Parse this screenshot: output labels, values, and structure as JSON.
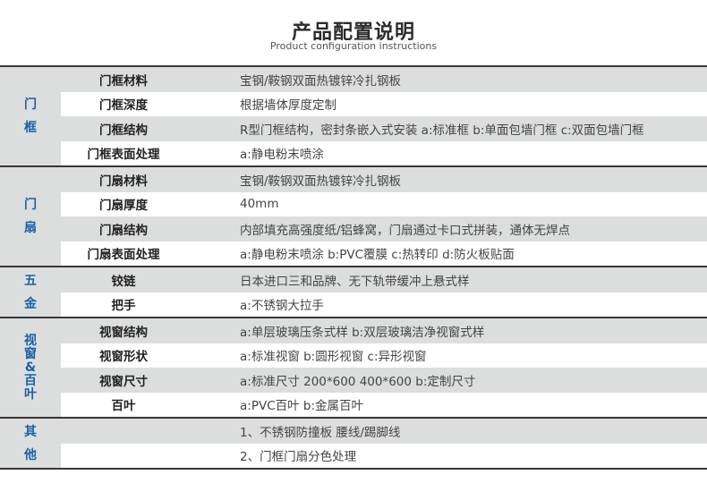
{
  "header": {
    "title": "产品配置说明",
    "subtitle": "Product configuration instructions"
  },
  "accent_color": "#1a5fa8",
  "groups": [
    {
      "name": [
        "门",
        "框"
      ],
      "rows": [
        {
          "label": "门框材料",
          "value": "宝钢/鞍钢双面热镀锌冷扎钢板"
        },
        {
          "label": "门框深度",
          "value": "根据墙体厚度定制"
        },
        {
          "label": "门框结构",
          "value": "R型门框结构，密封条嵌入式安装   a:标准框    b:单面包墙门框   c:双面包墙门框"
        },
        {
          "label": "门框表面处理",
          "value": "a:静电粉末喷涂"
        }
      ]
    },
    {
      "name": [
        "门",
        "扇"
      ],
      "rows": [
        {
          "label": "门扇材料",
          "value": "宝钢/鞍钢双面热镀锌冷扎钢板"
        },
        {
          "label": "门扇厚度",
          "value": "40mm"
        },
        {
          "label": "门扇结构",
          "value": "内部填充高强度纸/铝蜂窝，门扇通过卡口式拼装，通体无焊点"
        },
        {
          "label": "门扇表面处理",
          "value": "a:静电粉末喷涂   b:PVC覆膜   c:热转印   d:防火板贴面"
        }
      ]
    },
    {
      "name": [
        "五",
        "金"
      ],
      "rows": [
        {
          "label": "铰链",
          "value": "日本进口三和品牌、无下轨带缓冲上悬式样"
        },
        {
          "label": "把手",
          "value": "a:不锈钢大拉手"
        }
      ]
    },
    {
      "name": [
        "视",
        "窗",
        "&",
        "百",
        "叶"
      ],
      "rows": [
        {
          "label": "视窗结构",
          "value": "a:单层玻璃压条式样   b:双层玻璃洁净视窗式样"
        },
        {
          "label": "视窗形状",
          "value": "a:标准视窗    b:圆形视窗    c:异形视窗"
        },
        {
          "label": "视窗尺寸",
          "value": "a:标准尺寸 200*600  400*600   b:定制尺寸"
        },
        {
          "label": "百叶",
          "value": "a:PVC百叶   b:金属百叶"
        }
      ]
    },
    {
      "name": [
        "其",
        "他"
      ],
      "rows": [
        {
          "label": "",
          "value": "1、不锈钢防撞板 腰线/踢脚线"
        },
        {
          "label": "",
          "value": "2、门框门扇分色处理"
        }
      ]
    }
  ]
}
